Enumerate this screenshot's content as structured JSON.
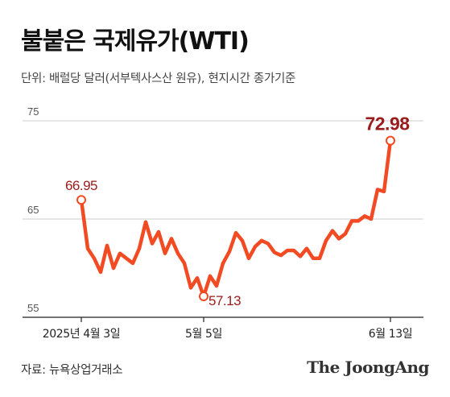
{
  "header": {
    "title": "불붙은 국제유가(WTI)",
    "subtitle": "단위: 배럴당 달러(서부텍사스산 원유), 현지시간 종가기준"
  },
  "footer": {
    "source": "자료: 뉴욕상업거래소",
    "logo": "The JoongAng"
  },
  "colors": {
    "line": "#f24a22",
    "annotation": "#9a1b1b",
    "grid": "#cccccc",
    "axis": "#222222"
  },
  "chart_data": {
    "type": "line",
    "series": [
      {
        "values": [
          66.95,
          62.0,
          61.0,
          59.6,
          62.3,
          60.0,
          61.5,
          61.0,
          60.5,
          62.0,
          64.7,
          62.5,
          63.7,
          61.5,
          63.0,
          61.5,
          60.5,
          58.0,
          59.0,
          57.13,
          59.2,
          58.2,
          60.5,
          61.7,
          63.6,
          62.8,
          61.0,
          62.2,
          62.8,
          62.5,
          61.6,
          61.3,
          61.8,
          61.8,
          61.2,
          62.0,
          61.0,
          61.0,
          62.8,
          63.8,
          63.0,
          63.5,
          64.8,
          64.8,
          65.3,
          65.0,
          68.0,
          67.8,
          72.98
        ]
      }
    ],
    "ylim": [
      55,
      75
    ],
    "yticks": [
      "75",
      "65",
      "55"
    ],
    "xticks": [
      {
        "label": "2025년 4월 3일",
        "index": 0
      },
      {
        "label": "5월 5일",
        "index": 19
      },
      {
        "label": "6월 13일",
        "index": 48
      }
    ],
    "annotations": [
      {
        "label": "66.95",
        "index": 0,
        "value": 66.95
      },
      {
        "label": "57.13",
        "index": 19,
        "value": 57.13
      },
      {
        "label": "72.98",
        "index": 48,
        "value": 72.98
      }
    ],
    "grid": true
  }
}
